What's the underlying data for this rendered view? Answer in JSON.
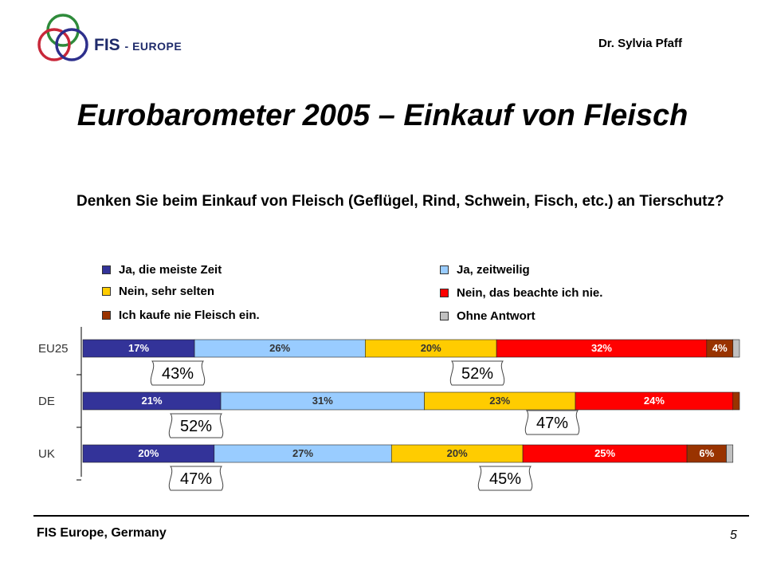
{
  "header": {
    "brand": "FIS",
    "brand_sub": "- EUROPE",
    "author": "Dr. Sylvia Pfaff"
  },
  "title": "Eurobarometer 2005 – Einkauf von Fleisch",
  "question": "Denken Sie beim Einkauf von Fleisch (Geflügel, Rind, Schwein, Fisch, etc.) an Tierschutz?",
  "logo": {
    "ring_colors": [
      "#2e8b3a",
      "#c8283a",
      "#2d2f8c"
    ]
  },
  "chart_data": {
    "type": "bar",
    "orientation": "horizontal-stacked",
    "categories": [
      "EU25",
      "DE",
      "UK"
    ],
    "series": [
      {
        "name": "Ja, die meiste Zeit",
        "color": "#333399",
        "values": [
          17,
          21,
          20
        ]
      },
      {
        "name": "Ja, zeitweilig",
        "color": "#99ccff",
        "values": [
          26,
          31,
          27
        ]
      },
      {
        "name": "Nein, sehr selten",
        "color": "#ffcc00",
        "values": [
          20,
          23,
          20
        ]
      },
      {
        "name": "Nein, das beachte ich nie.",
        "color": "#ff0000",
        "values": [
          32,
          24,
          25
        ]
      },
      {
        "name": "Ich kaufe nie Fleisch ein.",
        "color": "#993300",
        "values": [
          4,
          1,
          6
        ]
      },
      {
        "name": "Ohne Antwort",
        "color": "#c0c0c0",
        "values": [
          1,
          0,
          1
        ]
      }
    ],
    "data_labels": [
      [
        "17%",
        "26%",
        "20%",
        "32%",
        "4%",
        ""
      ],
      [
        "21%",
        "31%",
        "23%",
        "24%",
        "",
        ""
      ],
      [
        "20%",
        "27%",
        "20%",
        "25%",
        "6%",
        ""
      ]
    ],
    "xlim": [
      0,
      100
    ],
    "legend_position": "top",
    "callouts": [
      {
        "category": "EU25",
        "text": "43%",
        "covers": "yes",
        "side": "below"
      },
      {
        "category": "EU25",
        "text": "52%",
        "covers": "no",
        "side": "below"
      },
      {
        "category": "DE",
        "text": "52%",
        "covers": "yes",
        "side": "below"
      },
      {
        "category": "DE",
        "text": "47%",
        "covers": "no",
        "side": "above"
      },
      {
        "category": "UK",
        "text": "47%",
        "covers": "yes",
        "side": "below"
      },
      {
        "category": "UK",
        "text": "45%",
        "covers": "no",
        "side": "below"
      }
    ]
  },
  "footer": {
    "org": "FIS Europe, Germany",
    "page": "5"
  }
}
